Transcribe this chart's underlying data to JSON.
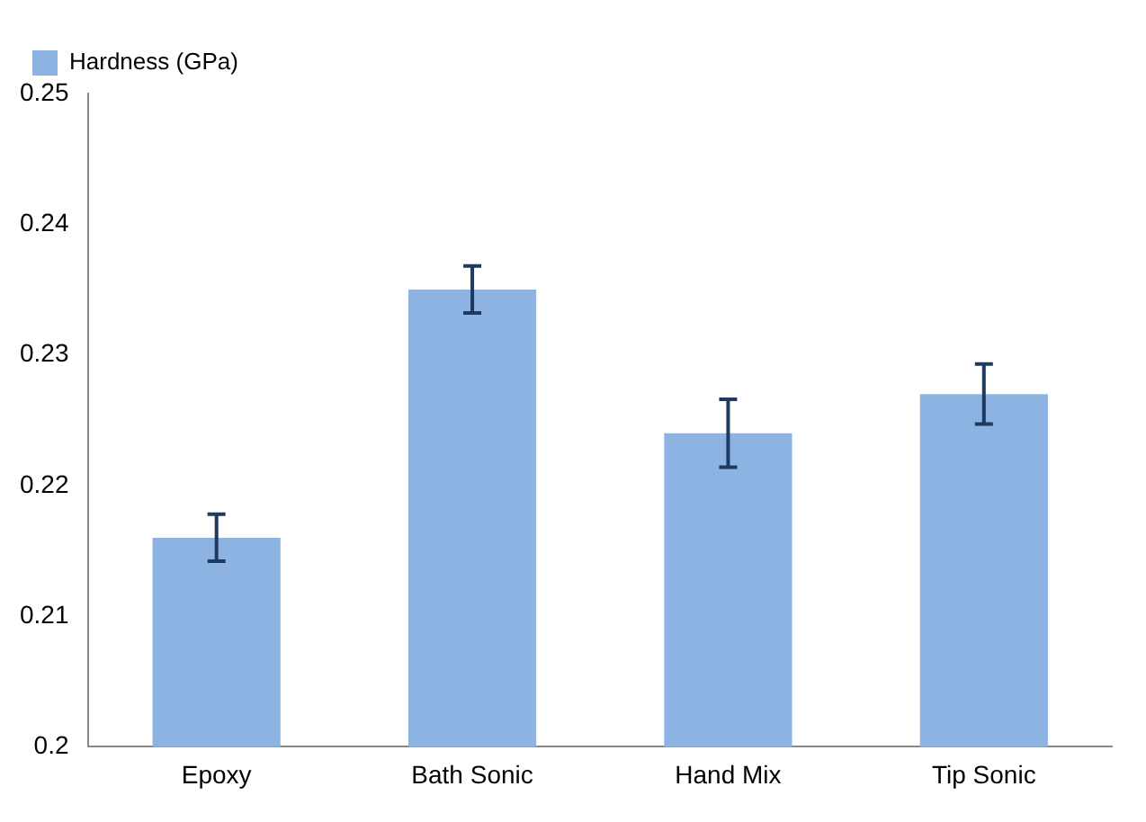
{
  "chart_data": {
    "type": "bar",
    "categories": [
      "Epoxy",
      "Bath Sonic",
      "Hand Mix",
      "Tip Sonic"
    ],
    "series": [
      {
        "name": "Hardness (GPa)",
        "color": "#8db3e2",
        "values": [
          0.216,
          0.235,
          0.224,
          0.227
        ],
        "errors": [
          0.0018,
          0.0018,
          0.0026,
          0.0023
        ]
      }
    ],
    "ylim": [
      0.2,
      0.25
    ],
    "yticks": [
      0.2,
      0.21,
      0.22,
      0.23,
      0.24,
      0.25
    ],
    "grid": false,
    "legend": "top left"
  }
}
